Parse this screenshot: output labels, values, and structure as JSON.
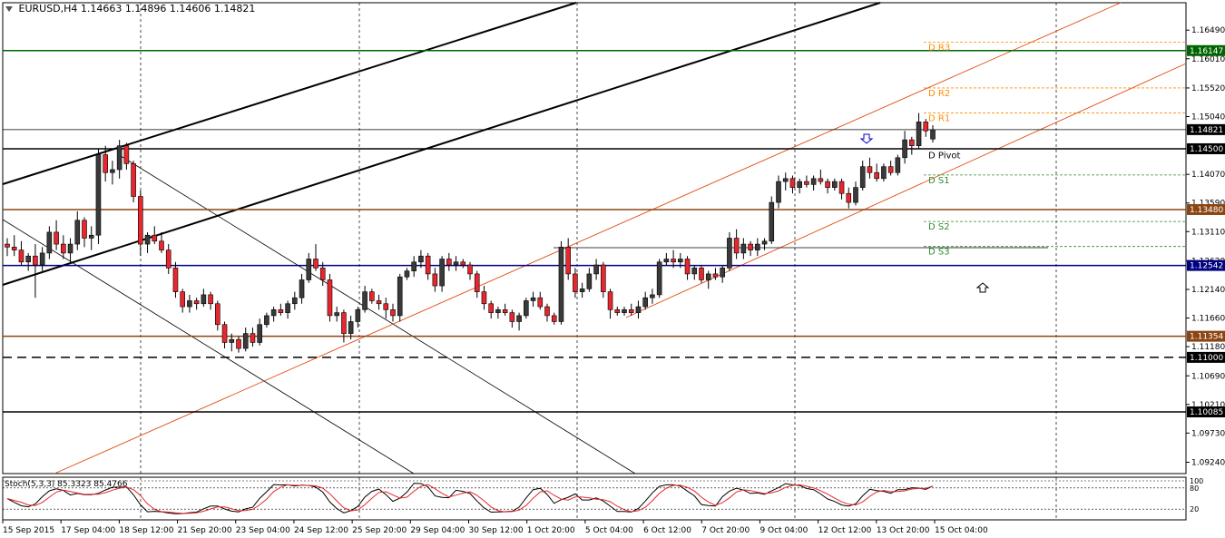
{
  "header": {
    "symbol": "EURUSD,H4",
    "ohlc": "1.14663 1.14896 1.14606 1.14821"
  },
  "stoch_label": "Stoch(5,3,3) 85.3323 85.4766",
  "chart_data": {
    "type": "candlestick",
    "symbol": "EURUSD",
    "timeframe": "H4",
    "ylim": [
      1.0905,
      1.1695
    ],
    "y_ticks": [
      "1.16490",
      "1.16010",
      "1.15520",
      "1.15040",
      "1.14070",
      "1.13590",
      "1.13110",
      "1.12620",
      "1.12140",
      "1.11660",
      "1.11180",
      "1.10690",
      "1.10210",
      "1.09730",
      "1.09240"
    ],
    "x_ticks": [
      "15 Sep 2015",
      "17 Sep 04:00",
      "18 Sep 12:00",
      "21 Sep 20:00",
      "23 Sep 04:00",
      "24 Sep 12:00",
      "25 Sep 20:00",
      "29 Sep 04:00",
      "30 Sep 12:00",
      "1 Oct 20:00",
      "5 Oct 04:00",
      "6 Oct 12:00",
      "7 Oct 20:00",
      "9 Oct 04:00",
      "12 Oct 12:00",
      "13 Oct 20:00",
      "15 Oct 04:00"
    ],
    "horizontal_levels": [
      {
        "price": 1.16147,
        "label": "1.16147",
        "color": "#006400"
      },
      {
        "price": 1.14821,
        "label": "1.14821",
        "color": "#000000"
      },
      {
        "price": 1.145,
        "label": "1.14500",
        "color": "#000000"
      },
      {
        "price": 1.1348,
        "label": "1.13480",
        "color": "#8B4513"
      },
      {
        "price": 1.12542,
        "label": "1.12542",
        "color": "#000080"
      },
      {
        "price": 1.11354,
        "label": "1.11354",
        "color": "#8B4513"
      },
      {
        "price": 1.11,
        "label": "1.11000",
        "color": "#000000"
      },
      {
        "price": 1.10085,
        "label": "1.10085",
        "color": "#000000"
      }
    ],
    "pivots": [
      {
        "name": "D R3",
        "price": 1.1629,
        "color": "#FF8C00"
      },
      {
        "name": "D R2",
        "price": 1.1552,
        "color": "#FF8C00"
      },
      {
        "name": "D R1",
        "price": 1.151,
        "color": "#FF8C00"
      },
      {
        "name": "D Pivot",
        "price": 1.1448,
        "color": "#000000"
      },
      {
        "name": "D S1",
        "price": 1.1406,
        "color": "#2E8B2E"
      },
      {
        "name": "D S2",
        "price": 1.1328,
        "color": "#2E8B2E"
      },
      {
        "name": "D S3",
        "price": 1.1286,
        "color": "#2E8B2E"
      }
    ],
    "candles": [
      [
        1.129,
        1.13,
        1.127,
        1.1285
      ],
      [
        1.1285,
        1.1305,
        1.127,
        1.128
      ],
      [
        1.128,
        1.1295,
        1.1255,
        1.126
      ],
      [
        1.126,
        1.1275,
        1.1245,
        1.127
      ],
      [
        1.127,
        1.129,
        1.12,
        1.1255
      ],
      [
        1.1255,
        1.1285,
        1.1245,
        1.1275
      ],
      [
        1.1275,
        1.132,
        1.1265,
        1.131
      ],
      [
        1.131,
        1.133,
        1.128,
        1.129
      ],
      [
        1.129,
        1.1305,
        1.1265,
        1.1275
      ],
      [
        1.1275,
        1.13,
        1.126,
        1.129
      ],
      [
        1.129,
        1.1345,
        1.128,
        1.133
      ],
      [
        1.133,
        1.1335,
        1.1285,
        1.13
      ],
      [
        1.13,
        1.132,
        1.128,
        1.1305
      ],
      [
        1.1305,
        1.145,
        1.129,
        1.144
      ],
      [
        1.144,
        1.1455,
        1.1395,
        1.141
      ],
      [
        1.141,
        1.143,
        1.139,
        1.1415
      ],
      [
        1.1415,
        1.1465,
        1.14,
        1.1455
      ],
      [
        1.1455,
        1.146,
        1.1415,
        1.1425
      ],
      [
        1.1425,
        1.143,
        1.136,
        1.137
      ],
      [
        1.137,
        1.138,
        1.127,
        1.129
      ],
      [
        1.129,
        1.131,
        1.1275,
        1.1305
      ],
      [
        1.1305,
        1.132,
        1.129,
        1.1295
      ],
      [
        1.1295,
        1.131,
        1.1275,
        1.128
      ],
      [
        1.128,
        1.129,
        1.124,
        1.125
      ],
      [
        1.125,
        1.126,
        1.12,
        1.121
      ],
      [
        1.121,
        1.1215,
        1.1175,
        1.1185
      ],
      [
        1.1185,
        1.1205,
        1.1175,
        1.1195
      ],
      [
        1.1195,
        1.12,
        1.118,
        1.119
      ],
      [
        1.119,
        1.1215,
        1.1185,
        1.1205
      ],
      [
        1.1205,
        1.121,
        1.118,
        1.119
      ],
      [
        1.119,
        1.1195,
        1.1145,
        1.1155
      ],
      [
        1.1155,
        1.116,
        1.1115,
        1.1125
      ],
      [
        1.1125,
        1.114,
        1.111,
        1.113
      ],
      [
        1.113,
        1.1135,
        1.1108,
        1.1115
      ],
      [
        1.1115,
        1.115,
        1.111,
        1.114
      ],
      [
        1.114,
        1.115,
        1.1118,
        1.1125
      ],
      [
        1.1125,
        1.1165,
        1.112,
        1.1155
      ],
      [
        1.1155,
        1.1175,
        1.115,
        1.117
      ],
      [
        1.117,
        1.1185,
        1.116,
        1.118
      ],
      [
        1.118,
        1.119,
        1.117,
        1.1175
      ],
      [
        1.1175,
        1.1195,
        1.1165,
        1.119
      ],
      [
        1.119,
        1.121,
        1.118,
        1.12
      ],
      [
        1.12,
        1.124,
        1.119,
        1.123
      ],
      [
        1.123,
        1.1275,
        1.1225,
        1.1265
      ],
      [
        1.1265,
        1.129,
        1.1245,
        1.125
      ],
      [
        1.125,
        1.126,
        1.122,
        1.123
      ],
      [
        1.123,
        1.124,
        1.116,
        1.117
      ],
      [
        1.117,
        1.1185,
        1.116,
        1.1175
      ],
      [
        1.1175,
        1.118,
        1.1125,
        1.114
      ],
      [
        1.114,
        1.117,
        1.113,
        1.116
      ],
      [
        1.116,
        1.1185,
        1.115,
        1.118
      ],
      [
        1.118,
        1.122,
        1.1175,
        1.121
      ],
      [
        1.121,
        1.1215,
        1.119,
        1.1195
      ],
      [
        1.1195,
        1.1205,
        1.118,
        1.119
      ],
      [
        1.119,
        1.12,
        1.1165,
        1.118
      ],
      [
        1.118,
        1.119,
        1.116,
        1.117
      ],
      [
        1.117,
        1.124,
        1.116,
        1.1235
      ],
      [
        1.1235,
        1.125,
        1.123,
        1.1245
      ],
      [
        1.1245,
        1.127,
        1.1235,
        1.126
      ],
      [
        1.126,
        1.128,
        1.125,
        1.127
      ],
      [
        1.127,
        1.1275,
        1.123,
        1.124
      ],
      [
        1.124,
        1.125,
        1.121,
        1.122
      ],
      [
        1.122,
        1.127,
        1.121,
        1.1265
      ],
      [
        1.1265,
        1.1275,
        1.1245,
        1.1255
      ],
      [
        1.1255,
        1.127,
        1.1245,
        1.126
      ],
      [
        1.126,
        1.1265,
        1.125,
        1.1255
      ],
      [
        1.1255,
        1.126,
        1.123,
        1.124
      ],
      [
        1.124,
        1.1245,
        1.12,
        1.121
      ],
      [
        1.121,
        1.122,
        1.118,
        1.119
      ],
      [
        1.119,
        1.1195,
        1.1165,
        1.1175
      ],
      [
        1.1175,
        1.1185,
        1.1165,
        1.118
      ],
      [
        1.118,
        1.119,
        1.117,
        1.1175
      ],
      [
        1.1175,
        1.118,
        1.115,
        1.116
      ],
      [
        1.116,
        1.1175,
        1.1145,
        1.117
      ],
      [
        1.117,
        1.12,
        1.1165,
        1.1195
      ],
      [
        1.1195,
        1.121,
        1.1185,
        1.12
      ],
      [
        1.12,
        1.121,
        1.118,
        1.1185
      ],
      [
        1.1185,
        1.119,
        1.116,
        1.117
      ],
      [
        1.117,
        1.1175,
        1.1155,
        1.116
      ],
      [
        1.116,
        1.1295,
        1.1155,
        1.1285
      ],
      [
        1.1285,
        1.13,
        1.123,
        1.124
      ],
      [
        1.124,
        1.125,
        1.12,
        1.121
      ],
      [
        1.121,
        1.1225,
        1.12,
        1.1215
      ],
      [
        1.1215,
        1.125,
        1.121,
        1.124
      ],
      [
        1.124,
        1.1265,
        1.123,
        1.1255
      ],
      [
        1.1255,
        1.126,
        1.12,
        1.121
      ],
      [
        1.121,
        1.1215,
        1.1165,
        1.118
      ],
      [
        1.118,
        1.1185,
        1.117,
        1.1175
      ],
      [
        1.1175,
        1.1185,
        1.117,
        1.118
      ],
      [
        1.118,
        1.119,
        1.117,
        1.1175
      ],
      [
        1.1175,
        1.1195,
        1.1165,
        1.1185
      ],
      [
        1.1185,
        1.121,
        1.118,
        1.12
      ],
      [
        1.12,
        1.1215,
        1.119,
        1.1205
      ],
      [
        1.1205,
        1.1265,
        1.12,
        1.126
      ],
      [
        1.126,
        1.1275,
        1.1255,
        1.1265
      ],
      [
        1.1265,
        1.128,
        1.125,
        1.126
      ],
      [
        1.126,
        1.1275,
        1.125,
        1.1265
      ],
      [
        1.1265,
        1.127,
        1.123,
        1.124
      ],
      [
        1.124,
        1.1255,
        1.123,
        1.125
      ],
      [
        1.125,
        1.1255,
        1.1225,
        1.123
      ],
      [
        1.123,
        1.1245,
        1.1215,
        1.124
      ],
      [
        1.124,
        1.125,
        1.123,
        1.1235
      ],
      [
        1.1235,
        1.1255,
        1.1225,
        1.125
      ],
      [
        1.125,
        1.131,
        1.1245,
        1.13
      ],
      [
        1.13,
        1.1315,
        1.1265,
        1.1275
      ],
      [
        1.1275,
        1.13,
        1.1265,
        1.129
      ],
      [
        1.129,
        1.1295,
        1.127,
        1.128
      ],
      [
        1.128,
        1.13,
        1.127,
        1.129
      ],
      [
        1.129,
        1.13,
        1.128,
        1.1295
      ],
      [
        1.1295,
        1.137,
        1.129,
        1.136
      ],
      [
        1.136,
        1.1405,
        1.135,
        1.1395
      ],
      [
        1.1395,
        1.141,
        1.138,
        1.14
      ],
      [
        1.14,
        1.1405,
        1.1375,
        1.1385
      ],
      [
        1.1385,
        1.14,
        1.1375,
        1.1395
      ],
      [
        1.1395,
        1.1405,
        1.1385,
        1.139
      ],
      [
        1.139,
        1.1405,
        1.138,
        1.14
      ],
      [
        1.14,
        1.1415,
        1.139,
        1.1395
      ],
      [
        1.1395,
        1.14,
        1.1375,
        1.1385
      ],
      [
        1.1385,
        1.14,
        1.138,
        1.1395
      ],
      [
        1.1395,
        1.14,
        1.1365,
        1.1375
      ],
      [
        1.1375,
        1.1385,
        1.135,
        1.136
      ],
      [
        1.136,
        1.1395,
        1.1355,
        1.1385
      ],
      [
        1.1385,
        1.143,
        1.138,
        1.142
      ],
      [
        1.142,
        1.1435,
        1.14,
        1.141
      ],
      [
        1.141,
        1.1425,
        1.1395,
        1.14
      ],
      [
        1.14,
        1.1425,
        1.1395,
        1.142
      ],
      [
        1.142,
        1.143,
        1.1405,
        1.141
      ],
      [
        1.141,
        1.144,
        1.1405,
        1.1435
      ],
      [
        1.1435,
        1.148,
        1.1425,
        1.1465
      ],
      [
        1.1465,
        1.147,
        1.144,
        1.1455
      ],
      [
        1.1455,
        1.151,
        1.145,
        1.1495
      ],
      [
        1.1495,
        1.15,
        1.147,
        1.148
      ],
      [
        1.14663,
        1.14896,
        1.14606,
        1.14821
      ]
    ],
    "stochastic": {
      "k": 85.3323,
      "d": 85.4766,
      "levels": [
        20,
        80,
        100
      ]
    }
  }
}
